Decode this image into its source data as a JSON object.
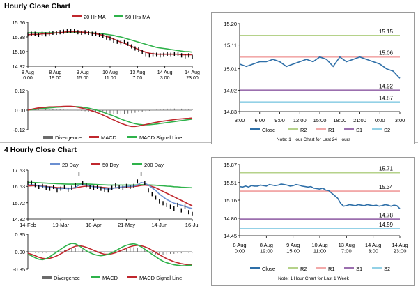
{
  "sections": {
    "hourly": {
      "title": "Hourly Close Chart"
    },
    "four_hourly": {
      "title": "4 Hourly Close Chart"
    }
  },
  "colors": {
    "price": "#000000",
    "ma20": "#c0272d",
    "ma50": "#2eb24a",
    "close": "#2e6fa8",
    "r2": "#b5d28a",
    "r1": "#f2a9a9",
    "s1": "#9b6fae",
    "s2": "#93d1e6",
    "divergence": "#6b6b6b",
    "macd": "#c0272d",
    "signal": "#2eb24a",
    "day20": "#6b8fd1"
  },
  "chart_data": [
    {
      "id": "hourly-price",
      "type": "line",
      "title": "",
      "legend": "top",
      "yticks": [
        15.66,
        15.38,
        15.1,
        14.82
      ],
      "ylim": [
        14.82,
        15.66
      ],
      "xticks": [
        "8 Aug\n0:00",
        "8 Aug\n19:00",
        "9 Aug\n15:00",
        "10 Aug\n11:00",
        "13 Aug\n7:00",
        "14 Aug\n3:00",
        "14 Aug\n23:00"
      ],
      "series": [
        {
          "name": "",
          "color_key": "price",
          "kind": "bars",
          "values": [
            15.43,
            15.44,
            15.44,
            15.42,
            15.44,
            15.43,
            15.45,
            15.46,
            15.46,
            15.47,
            15.48,
            15.49,
            15.5,
            15.49,
            15.47,
            15.46,
            15.47,
            15.46,
            15.44,
            15.44,
            15.42,
            15.4,
            15.37,
            15.35,
            15.31,
            15.29,
            15.28,
            15.29,
            15.25,
            15.2,
            15.16,
            15.14,
            15.1,
            15.04,
            15.03,
            15.04,
            15.04,
            15.03,
            15.04,
            15.05,
            15.04,
            15.05,
            15.05,
            15.03,
            15.01,
            15.03,
            15.0
          ]
        },
        {
          "name": "20 Hr MA",
          "color_key": "ma20",
          "values": [
            15.42,
            15.43,
            15.43,
            15.43,
            15.44,
            15.44,
            15.44,
            15.45,
            15.46,
            15.46,
            15.47,
            15.48,
            15.48,
            15.48,
            15.48,
            15.47,
            15.47,
            15.46,
            15.45,
            15.44,
            15.43,
            15.41,
            15.39,
            15.37,
            15.34,
            15.31,
            15.28,
            15.26,
            15.23,
            15.2,
            15.17,
            15.14,
            15.11,
            15.09,
            15.07,
            15.06,
            15.05,
            15.05,
            15.05,
            15.05,
            15.05,
            15.05,
            15.05,
            15.04,
            15.04,
            15.04,
            15.04
          ]
        },
        {
          "name": "50 Hrs MA",
          "color_key": "ma50",
          "values": [
            15.46,
            15.46,
            15.46,
            15.46,
            15.46,
            15.46,
            15.46,
            15.46,
            15.46,
            15.46,
            15.46,
            15.46,
            15.46,
            15.46,
            15.46,
            15.46,
            15.46,
            15.46,
            15.46,
            15.45,
            15.45,
            15.44,
            15.43,
            15.42,
            15.41,
            15.39,
            15.38,
            15.36,
            15.34,
            15.32,
            15.3,
            15.28,
            15.26,
            15.24,
            15.22,
            15.2,
            15.18,
            15.17,
            15.16,
            15.15,
            15.14,
            15.13,
            15.12,
            15.11,
            15.1,
            15.1,
            15.09
          ]
        }
      ]
    },
    {
      "id": "hourly-macd",
      "type": "line",
      "title": "",
      "legend": "bottom",
      "yticks": [
        0.12,
        0.0,
        -0.12
      ],
      "ylim": [
        -0.12,
        0.12
      ],
      "series": [
        {
          "name": "Divergence",
          "color_key": "divergence",
          "kind": "hist",
          "values": [
            0.0,
            0.0,
            0.002,
            0.004,
            0.005,
            0.006,
            0.006,
            0.005,
            0.004,
            0.004,
            0.003,
            0.002,
            0.001,
            0.0,
            -0.002,
            -0.004,
            -0.006,
            -0.008,
            -0.01,
            -0.012,
            -0.014,
            -0.016,
            -0.018,
            -0.02,
            -0.022,
            -0.024,
            -0.024,
            -0.022,
            -0.02,
            -0.018,
            -0.016,
            -0.013,
            -0.01,
            -0.007,
            -0.004,
            0.0,
            0.003,
            0.006,
            0.008,
            0.009,
            0.01,
            0.01,
            0.01,
            0.009,
            0.008,
            0.007,
            0.006
          ]
        },
        {
          "name": "MACD",
          "color_key": "macd",
          "values": [
            0.0,
            0.005,
            0.01,
            0.014,
            0.016,
            0.018,
            0.02,
            0.02,
            0.021,
            0.022,
            0.023,
            0.024,
            0.024,
            0.022,
            0.018,
            0.013,
            0.008,
            0.002,
            -0.005,
            -0.012,
            -0.02,
            -0.03,
            -0.04,
            -0.05,
            -0.06,
            -0.07,
            -0.08,
            -0.088,
            -0.095,
            -0.1,
            -0.1,
            -0.097,
            -0.093,
            -0.088,
            -0.083,
            -0.078,
            -0.074,
            -0.07,
            -0.067,
            -0.064,
            -0.061,
            -0.058,
            -0.055,
            -0.053,
            -0.051,
            -0.05,
            -0.048
          ]
        },
        {
          "name": "MACD Signal Line",
          "color_key": "signal",
          "values": [
            0.0,
            0.002,
            0.005,
            0.008,
            0.01,
            0.012,
            0.014,
            0.016,
            0.018,
            0.019,
            0.02,
            0.021,
            0.022,
            0.022,
            0.021,
            0.019,
            0.016,
            0.012,
            0.007,
            0.002,
            -0.004,
            -0.012,
            -0.02,
            -0.028,
            -0.036,
            -0.045,
            -0.054,
            -0.062,
            -0.07,
            -0.077,
            -0.083,
            -0.087,
            -0.089,
            -0.09,
            -0.089,
            -0.087,
            -0.085,
            -0.082,
            -0.079,
            -0.076,
            -0.073,
            -0.07,
            -0.067,
            -0.064,
            -0.061,
            -0.058,
            -0.055
          ]
        }
      ]
    },
    {
      "id": "hourly-levels",
      "type": "line",
      "title": "",
      "legend": "bottom",
      "note": "Note: 1 Hour Chart for Last 24 Hours",
      "yticks": [
        15.2,
        15.11,
        15.01,
        14.92,
        14.83
      ],
      "ylim": [
        14.83,
        15.2
      ],
      "xticks": [
        "3:00",
        "6:00",
        "9:00",
        "12:00",
        "15:00",
        "18:00",
        "21:00",
        "0:00",
        "3:00"
      ],
      "levels": [
        {
          "name": "R2",
          "value": 15.15,
          "label": "15.15",
          "color_key": "r2"
        },
        {
          "name": "R1",
          "value": 15.06,
          "label": "15.06",
          "color_key": "r1"
        },
        {
          "name": "S1",
          "value": 14.92,
          "label": "14.92",
          "color_key": "s1"
        },
        {
          "name": "S2",
          "value": 14.87,
          "label": "14.87",
          "color_key": "s2"
        }
      ],
      "series": [
        {
          "name": "Close",
          "color_key": "close",
          "values": [
            15.03,
            15.02,
            15.03,
            15.04,
            15.04,
            15.05,
            15.04,
            15.02,
            15.03,
            15.04,
            15.05,
            15.04,
            15.06,
            15.05,
            15.02,
            15.06,
            15.04,
            15.05,
            15.06,
            15.05,
            15.04,
            15.03,
            15.01,
            15.0,
            14.97
          ]
        }
      ]
    },
    {
      "id": "four-hourly-price",
      "type": "line",
      "title": "",
      "legend": "top",
      "yticks": [
        17.53,
        16.63,
        15.72,
        14.82
      ],
      "ylim": [
        14.82,
        17.53
      ],
      "xticks": [
        "14-Feb",
        "19-Mar",
        "18-Apr",
        "21-May",
        "14-Jun",
        "16-Jul"
      ],
      "series": [
        {
          "name": "",
          "color_key": "price",
          "kind": "bars",
          "values": [
            16.8,
            16.85,
            16.7,
            16.6,
            16.65,
            16.55,
            16.5,
            16.6,
            16.4,
            16.5,
            16.6,
            16.45,
            16.55,
            16.7,
            17.3,
            16.8,
            16.7,
            16.6,
            16.55,
            16.6,
            16.5,
            16.45,
            16.4,
            16.55,
            16.7,
            16.6,
            16.55,
            16.65,
            16.6,
            16.65,
            16.9,
            17.3,
            16.8,
            16.4,
            16.2,
            16.0,
            15.8,
            15.7,
            15.6,
            15.5,
            15.4,
            15.6,
            15.3,
            15.5,
            15.2,
            15.1
          ]
        },
        {
          "name": "20 Day",
          "color_key": "day20",
          "values": [
            16.7,
            16.72,
            16.7,
            16.65,
            16.62,
            16.6,
            16.58,
            16.55,
            16.52,
            16.5,
            16.52,
            16.5,
            16.52,
            16.58,
            16.7,
            16.72,
            16.7,
            16.65,
            16.6,
            16.58,
            16.55,
            16.5,
            16.48,
            16.5,
            16.55,
            16.58,
            16.6,
            16.62,
            16.63,
            16.64,
            16.7,
            16.85,
            16.8,
            16.7,
            16.55,
            16.4,
            16.2,
            16.05,
            15.9,
            15.8,
            15.7,
            15.65,
            15.58,
            15.52,
            15.45,
            15.4
          ]
        },
        {
          "name": "50 Day",
          "color_key": "ma20",
          "values": [
            16.65,
            16.66,
            16.67,
            16.66,
            16.64,
            16.62,
            16.6,
            16.58,
            16.56,
            16.55,
            16.54,
            16.53,
            16.52,
            16.54,
            16.58,
            16.62,
            16.64,
            16.64,
            16.62,
            16.6,
            16.58,
            16.56,
            16.54,
            16.53,
            16.54,
            16.56,
            16.58,
            16.6,
            16.61,
            16.62,
            16.64,
            16.68,
            16.7,
            16.68,
            16.62,
            16.55,
            16.45,
            16.35,
            16.25,
            16.15,
            16.05,
            15.95,
            15.85,
            15.75,
            15.65,
            15.55
          ]
        },
        {
          "name": "200 Day",
          "color_key": "ma50",
          "values": [
            16.85,
            16.85,
            16.84,
            16.83,
            16.82,
            16.81,
            16.8,
            16.79,
            16.78,
            16.77,
            16.76,
            16.75,
            16.75,
            16.75,
            16.76,
            16.76,
            16.76,
            16.75,
            16.74,
            16.73,
            16.72,
            16.71,
            16.7,
            16.7,
            16.7,
            16.7,
            16.7,
            16.7,
            16.7,
            16.7,
            16.71,
            16.72,
            16.72,
            16.71,
            16.7,
            16.69,
            16.67,
            16.66,
            16.64,
            16.63,
            16.61,
            16.6,
            16.58,
            16.57,
            16.56,
            16.55
          ]
        }
      ]
    },
    {
      "id": "four-hourly-macd",
      "type": "line",
      "title": "",
      "legend": "bottom",
      "yticks": [
        0.35,
        0.0,
        -0.35
      ],
      "ylim": [
        -0.35,
        0.35
      ],
      "series": [
        {
          "name": "Divergence",
          "color_key": "divergence",
          "kind": "hist",
          "values": [
            0.0,
            -0.01,
            -0.02,
            -0.02,
            -0.03,
            -0.02,
            -0.01,
            0.0,
            0.01,
            0.02,
            0.03,
            0.05,
            0.07,
            0.08,
            0.07,
            0.05,
            0.03,
            0.01,
            -0.01,
            -0.02,
            -0.03,
            -0.02,
            -0.01,
            0.0,
            0.02,
            0.04,
            0.06,
            0.07,
            0.08,
            0.09,
            0.08,
            0.06,
            0.03,
            0.0,
            -0.03,
            -0.05,
            -0.06,
            -0.06,
            -0.05,
            -0.04,
            -0.04,
            -0.03,
            -0.03,
            -0.02,
            -0.02,
            -0.02
          ]
        },
        {
          "name": "MACD",
          "color_key": "signal",
          "values": [
            -0.05,
            -0.08,
            -0.12,
            -0.15,
            -0.16,
            -0.14,
            -0.1,
            -0.05,
            0.0,
            0.05,
            0.1,
            0.14,
            0.17,
            0.16,
            0.12,
            0.07,
            0.02,
            -0.02,
            -0.05,
            -0.07,
            -0.08,
            -0.07,
            -0.05,
            -0.02,
            0.02,
            0.06,
            0.1,
            0.13,
            0.15,
            0.16,
            0.14,
            0.1,
            0.05,
            0.0,
            -0.05,
            -0.1,
            -0.15,
            -0.19,
            -0.22,
            -0.24,
            -0.26,
            -0.27,
            -0.28,
            -0.28,
            -0.27,
            -0.27
          ]
        },
        {
          "name": "MACD Signal Line",
          "color_key": "macd",
          "values": [
            -0.03,
            -0.05,
            -0.08,
            -0.11,
            -0.13,
            -0.14,
            -0.13,
            -0.11,
            -0.08,
            -0.04,
            0.0,
            0.04,
            0.08,
            0.11,
            0.12,
            0.11,
            0.09,
            0.06,
            0.03,
            0.0,
            -0.03,
            -0.05,
            -0.05,
            -0.04,
            -0.02,
            0.01,
            0.04,
            0.07,
            0.1,
            0.12,
            0.13,
            0.12,
            0.1,
            0.07,
            0.03,
            -0.01,
            -0.06,
            -0.1,
            -0.14,
            -0.17,
            -0.2,
            -0.22,
            -0.24,
            -0.25,
            -0.26,
            -0.26
          ]
        }
      ]
    },
    {
      "id": "four-hourly-levels",
      "type": "line",
      "title": "",
      "legend": "bottom",
      "note": "Note: 1 Hour Chart for Last 1 Week",
      "yticks": [
        15.87,
        15.51,
        15.16,
        14.8,
        14.45
      ],
      "ylim": [
        14.45,
        15.87
      ],
      "xticks": [
        "8 Aug\n0:00",
        "8 Aug\n19:00",
        "9 Aug\n15:00",
        "10 Aug\n11:00",
        "13 Aug\n7:00",
        "14 Aug\n3:00",
        "14 Aug\n23:00"
      ],
      "levels": [
        {
          "name": "R2",
          "value": 15.71,
          "label": "15.71",
          "color_key": "r2"
        },
        {
          "name": "R1",
          "value": 15.34,
          "label": "15.34",
          "color_key": "r1"
        },
        {
          "name": "S1",
          "value": 14.78,
          "label": "14.78",
          "color_key": "s1"
        },
        {
          "name": "S2",
          "value": 14.59,
          "label": "14.59",
          "color_key": "s2"
        }
      ],
      "series": [
        {
          "name": "Close",
          "color_key": "close",
          "values": [
            15.43,
            15.42,
            15.44,
            15.42,
            15.45,
            15.44,
            15.44,
            15.46,
            15.45,
            15.44,
            15.47,
            15.46,
            15.45,
            15.46,
            15.48,
            15.47,
            15.46,
            15.44,
            15.45,
            15.47,
            15.46,
            15.44,
            15.43,
            15.42,
            15.43,
            15.4,
            15.39,
            15.38,
            15.4,
            15.36,
            15.35,
            15.3,
            15.25,
            15.2,
            15.1,
            15.04,
            15.05,
            15.07,
            15.06,
            15.05,
            15.07,
            15.06,
            15.05,
            15.07,
            15.06,
            15.05,
            15.06,
            15.04,
            15.05,
            15.07,
            15.06,
            15.04,
            15.06,
            15.05,
            14.99
          ]
        }
      ]
    }
  ]
}
